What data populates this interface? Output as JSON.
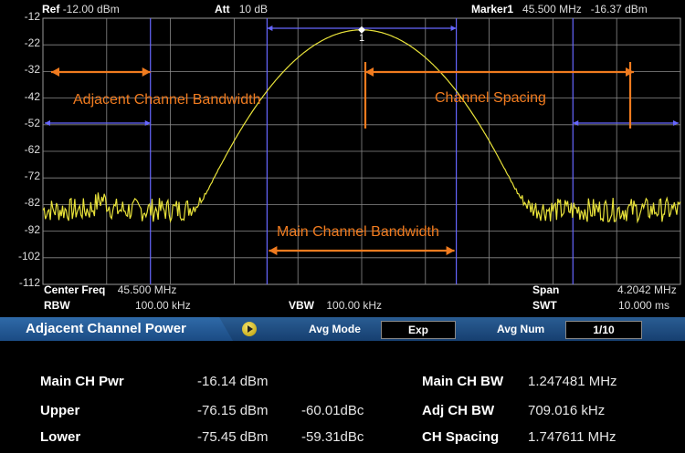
{
  "header": {
    "ref_label": "Ref",
    "ref_value": "-12.00 dBm",
    "att_label": "Att",
    "att_value": "10 dB",
    "marker_label": "Marker1",
    "marker_freq": "45.500 MHz",
    "marker_level": "-16.37 dBm"
  },
  "chart_data": {
    "type": "line",
    "ylim": [
      -112,
      -12
    ],
    "yticks": [
      "-12",
      "-22",
      "-32",
      "-42",
      "-52",
      "-62",
      "-72",
      "-82",
      "-92",
      "-102",
      "-112"
    ],
    "xlim_mhz": [
      43.3979,
      47.6021
    ],
    "noise_floor_dbm": -84,
    "peak": {
      "freq_mhz": 45.5,
      "level_dbm": -16.37
    },
    "main_channel_mhz": [
      44.876,
      46.124
    ],
    "adjacent_bw_khz": 709.016,
    "channel_spacing_mhz": 1.747611,
    "marker_label": "1",
    "grid": true
  },
  "annotations": {
    "adjacent_bw": "Adjacent Channel Bandwidth",
    "channel_spacing": "Channel Spacing",
    "main_bw": "Main Channel Bandwidth"
  },
  "footer": {
    "center_freq_label": "Center Freq",
    "center_freq_value": "45.500 MHz",
    "rbw_label": "RBW",
    "rbw_value": "100.00 kHz",
    "vbw_label": "VBW",
    "vbw_value": "100.00 kHz",
    "span_label": "Span",
    "span_value": "4.2042 MHz",
    "swt_label": "SWT",
    "swt_value": "10.000 ms"
  },
  "acp_bar": {
    "title": "Adjacent Channel Power",
    "avg_mode_label": "Avg Mode",
    "avg_mode_value": "Exp",
    "avg_num_label": "Avg Num",
    "avg_num_value": "1/10"
  },
  "results": {
    "main_ch_pwr_label": "Main CH Pwr",
    "main_ch_pwr_value": "-16.14 dBm",
    "upper_label": "Upper",
    "upper_dbm": "-76.15 dBm",
    "upper_dbc": "-60.01dBc",
    "lower_label": "Lower",
    "lower_dbm": "-75.45 dBm",
    "lower_dbc": "-59.31dBc",
    "main_ch_bw_label": "Main CH BW",
    "main_ch_bw_value": "1.247481 MHz",
    "adj_ch_bw_label": "Adj CH BW",
    "adj_ch_bw_value": "709.016 kHz",
    "ch_spacing_label": "CH Spacing",
    "ch_spacing_value": "1.747611 MHz"
  },
  "colors": {
    "trace": "#e8e23a",
    "grid": "#8a8a8a",
    "channel_lines": "#6666ff",
    "annotation": "#f07b1f",
    "bar": "#1f4f86"
  }
}
